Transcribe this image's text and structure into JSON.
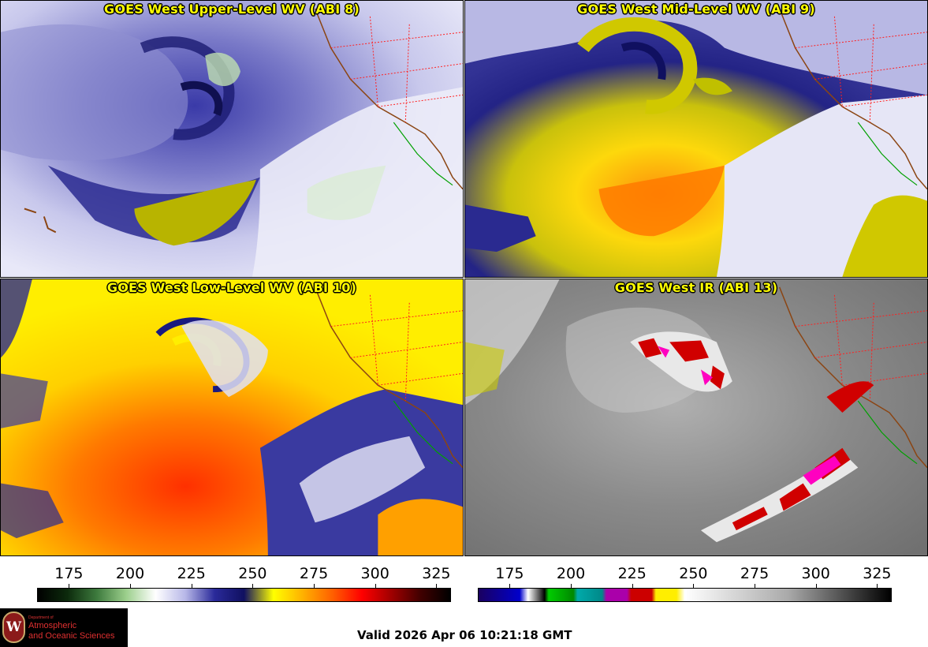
{
  "panels": [
    {
      "id": "upper",
      "title": "GOES West Upper-Level WV (ABI 8)"
    },
    {
      "id": "mid",
      "title": "GOES West Mid-Level WV (ABI 9)"
    },
    {
      "id": "low",
      "title": "GOES West Low-Level WV (ABI 10)"
    },
    {
      "id": "ir",
      "title": "GOES West IR (ABI 13)"
    }
  ],
  "colorbars": {
    "wv": {
      "ticks": [
        "175",
        "200",
        "225",
        "250",
        "275",
        "300",
        "325"
      ],
      "range": [
        162,
        331
      ]
    },
    "ir": {
      "ticks": [
        "175",
        "200",
        "225",
        "250",
        "275",
        "300",
        "325"
      ],
      "range": [
        162,
        331
      ]
    }
  },
  "colors": {
    "wv_scale": [
      "#000000",
      "#0c2a0c",
      "#3d7a3d",
      "#9ccf8c",
      "#ffffff",
      "#b8b8e8",
      "#2a2a9a",
      "#101060",
      "#ffff00",
      "#ffb000",
      "#ff6000",
      "#ff0000",
      "#a00000",
      "#400000",
      "#000000"
    ],
    "ir_scale": [
      "#1a0060",
      "#0000cc",
      "#ffffff",
      "#000000",
      "#00cc00",
      "#008800",
      "#00aaaa",
      "#aa00aa",
      "#cc0000",
      "#ffee00",
      "#ffffff",
      "#000000"
    ],
    "title_text": "#ffff00",
    "state_borders": "#ff2020",
    "coastline": "#8b4513"
  },
  "logo": {
    "seal": "W",
    "department": "Department of",
    "line1": "Atmospheric",
    "line2": "and Oceanic Sciences"
  },
  "valid_time": "Valid 2026 Apr 06 10:21:18 GMT"
}
